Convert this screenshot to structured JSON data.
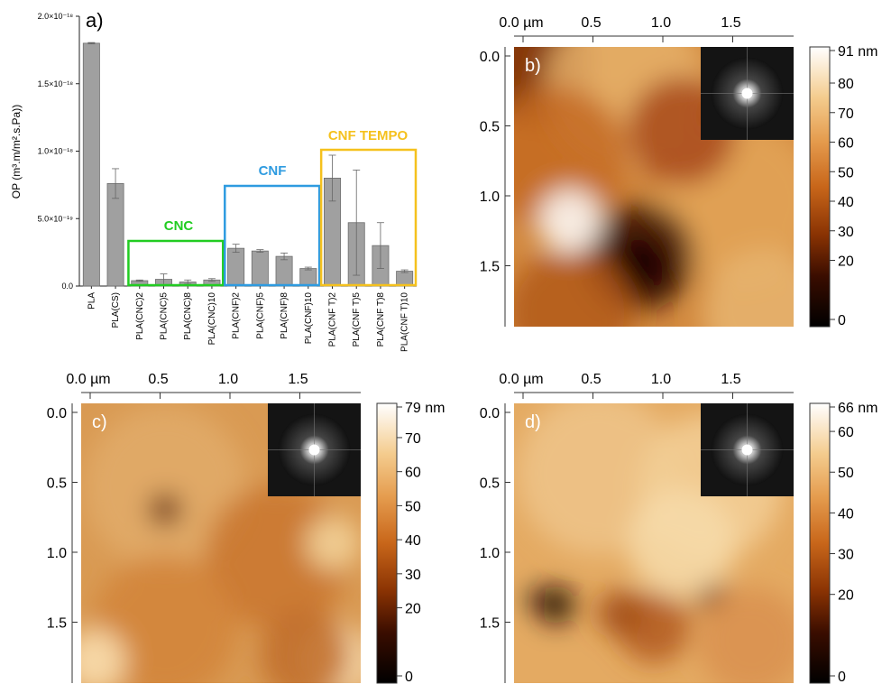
{
  "panel_a": {
    "label": "a)",
    "colors": {
      "bar": "#a0a0a0",
      "bar_edge": "#6e6e6e",
      "cnc": "#22cc22",
      "cnf": "#2e9be0",
      "tempo": "#f5c11d"
    },
    "group_labels": {
      "cnc": "CNC",
      "cnf": "CNF",
      "tempo": "CNF TEMPO"
    }
  },
  "chart_data": [
    {
      "type": "bar",
      "title": "",
      "xlabel": "",
      "ylabel": "OP (m³.m/m².s.Pa))",
      "ylim": [
        0,
        2e-18
      ],
      "yticks": [
        {
          "value": 0,
          "label": "0.0"
        },
        {
          "value": 5e-19,
          "label": "5.0×10⁻¹⁹"
        },
        {
          "value": 1e-18,
          "label": "1.0×10⁻¹⁸"
        },
        {
          "value": 1.5e-18,
          "label": "1.5×10⁻¹⁸"
        },
        {
          "value": 2e-18,
          "label": "2.0×10⁻¹⁸"
        }
      ],
      "categories": [
        "PLA",
        "PLA(CS)",
        "PLA(CNC)2",
        "PLA(CNC)5",
        "PLA(CNC)8",
        "PLA(CNC)10",
        "PLA(CNF)2",
        "PLA(CNF)5",
        "PLA(CNF)8",
        "PLA(CNF)10",
        "PLA(CNF T)2",
        "PLA(CNF T)5",
        "PLA(CNF T)8",
        "PLA(CNF T)10"
      ],
      "values": [
        1.8e-18,
        7.6e-19,
        4e-20,
        5e-20,
        3e-20,
        4.5e-20,
        2.8e-19,
        2.6e-19,
        2.2e-19,
        1.3e-19,
        8e-19,
        4.7e-19,
        3e-19,
        1.1e-19
      ],
      "errors": [
        5e-21,
        1.1e-19,
        5e-21,
        4e-20,
        1.5e-20,
        1e-20,
        3e-20,
        1e-20,
        2.5e-20,
        1e-20,
        1.7e-19,
        3.9e-19,
        1.7e-19,
        1e-20
      ],
      "groups": [
        {
          "name": "CNC",
          "from": 2,
          "to": 5
        },
        {
          "name": "CNF",
          "from": 6,
          "to": 9
        },
        {
          "name": "CNF TEMPO",
          "from": 10,
          "to": 13
        }
      ],
      "grid": false
    },
    {
      "type": "heatmap",
      "label": "b)",
      "x_ticks": [
        "0.0 µm",
        "0.5",
        "1.0",
        "1.5"
      ],
      "y_ticks": [
        "0.0",
        "0.5",
        "1.0",
        "1.5"
      ],
      "colorbar_max": "91 nm",
      "colorbar_ticks": [
        "80",
        "70",
        "60",
        "50",
        "40",
        "30",
        "20",
        "0"
      ],
      "colorbar_values": [
        80,
        70,
        60,
        50,
        40,
        30,
        20,
        0
      ],
      "z_max": 91,
      "inset": "FFT"
    },
    {
      "type": "heatmap",
      "label": "c)",
      "x_ticks": [
        "0.0 µm",
        "0.5",
        "1.0",
        "1.5"
      ],
      "y_ticks": [
        "0.0",
        "0.5",
        "1.0",
        "1.5"
      ],
      "colorbar_max": "79 nm",
      "colorbar_ticks": [
        "70",
        "60",
        "50",
        "40",
        "30",
        "20",
        "0"
      ],
      "colorbar_values": [
        70,
        60,
        50,
        40,
        30,
        20,
        0
      ],
      "z_max": 79,
      "inset": "FFT"
    },
    {
      "type": "heatmap",
      "label": "d)",
      "x_ticks": [
        "0.0 µm",
        "0.5",
        "1.0",
        "1.5"
      ],
      "y_ticks": [
        "0.0",
        "0.5",
        "1.0",
        "1.5"
      ],
      "colorbar_max": "66 nm",
      "colorbar_ticks": [
        "60",
        "50",
        "40",
        "30",
        "20",
        "0"
      ],
      "colorbar_values": [
        60,
        50,
        40,
        30,
        20,
        0
      ],
      "z_max": 66,
      "inset": "FFT"
    }
  ]
}
